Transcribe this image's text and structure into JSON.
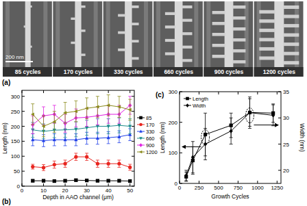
{
  "panel_a": {
    "label": "(a)",
    "scale_bar": "200 nm",
    "images": [
      "85 cycles",
      "170 cycles",
      "330 cycles",
      "660 cycles",
      "900 cycles",
      "1200 cycles"
    ]
  },
  "chart_data": [
    {
      "type": "line",
      "annotations": [
        "(b)"
      ],
      "x_label": "Depth in AAO channel (μm)",
      "y_label": "Length (nm)",
      "x": [
        5,
        10,
        15,
        20,
        25,
        30,
        35,
        40,
        45,
        50
      ],
      "xlim": [
        0,
        52
      ],
      "xticks": [
        0,
        10,
        20,
        30,
        40,
        50
      ],
      "ylim": [
        0,
        320
      ],
      "yticks": [
        0,
        50,
        100,
        150,
        200,
        250,
        300
      ],
      "grid": false,
      "legend": "right",
      "series": [
        {
          "name": "85",
          "color": "#000000",
          "marker": "square",
          "line_style": "solid",
          "values": [
            18,
            18,
            17,
            18,
            20,
            19,
            18,
            18,
            18,
            17
          ],
          "errors": [
            4,
            4,
            4,
            4,
            4,
            4,
            4,
            4,
            4,
            4
          ]
        },
        {
          "name": "170",
          "color": "#e8251f",
          "marker": "circle",
          "line_style": "solid",
          "values": [
            65,
            62,
            72,
            75,
            98,
            98,
            75,
            75,
            75,
            63
          ],
          "errors": [
            8,
            10,
            12,
            12,
            12,
            12,
            12,
            12,
            12,
            10
          ]
        },
        {
          "name": "330",
          "color": "#1f3fe8",
          "marker": "triangle-up",
          "line_style": "solid",
          "values": [
            155,
            152,
            155,
            155,
            155,
            160,
            160,
            162,
            165,
            172
          ],
          "errors": [
            20,
            20,
            20,
            20,
            20,
            20,
            20,
            20,
            20,
            20
          ]
        },
        {
          "name": "660",
          "color": "#1a8a8a",
          "marker": "triangle-down",
          "line_style": "solid",
          "values": [
            188,
            183,
            187,
            188,
            190,
            195,
            200,
            200,
            203,
            200
          ],
          "errors": [
            25,
            25,
            25,
            25,
            25,
            25,
            25,
            25,
            25,
            25
          ]
        },
        {
          "name": "900",
          "color": "#e020e0",
          "marker": "diamond",
          "line_style": "solid",
          "values": [
            205,
            235,
            240,
            210,
            228,
            230,
            235,
            240,
            240,
            270
          ],
          "errors": [
            30,
            30,
            30,
            30,
            30,
            30,
            30,
            30,
            30,
            30
          ]
        },
        {
          "name": "1200",
          "color": "#8a8a1a",
          "marker": "triangle-left",
          "line_style": "solid",
          "values": [
            240,
            200,
            215,
            245,
            250,
            260,
            265,
            270,
            265,
            255
          ],
          "errors": [
            35,
            35,
            35,
            35,
            35,
            35,
            35,
            35,
            35,
            35
          ]
        }
      ]
    },
    {
      "type": "line",
      "annotations": [
        "(c)"
      ],
      "x_label": "Growth Cycles",
      "y_label": "Length (nm)",
      "y2_label": "Width (nm)",
      "x": [
        85,
        170,
        330,
        660,
        900,
        1200
      ],
      "xlim": [
        0,
        1300
      ],
      "xticks": [
        0,
        250,
        500,
        750,
        1000,
        1250
      ],
      "ylim": [
        0,
        300
      ],
      "yticks": [
        0,
        100,
        200,
        300
      ],
      "y2lim": [
        17.5,
        35
      ],
      "y2ticks": [
        20,
        25,
        30,
        35
      ],
      "grid": false,
      "legend": "upper left",
      "series": [
        {
          "name": "Length",
          "color": "#000000",
          "marker": "square",
          "line_style": "solid",
          "values": [
            22,
            75,
            160,
            190,
            232,
            230
          ],
          "errors": [
            15,
            45,
            70,
            40,
            45,
            30
          ]
        },
        {
          "name": "Width",
          "color": "#000000",
          "marker": "diamond",
          "line_style": "solid",
          "axis": "y2",
          "values": [
            19,
            22.5,
            25,
            27.5,
            31,
            30.5
          ],
          "errors": [
            1,
            3,
            3,
            2.5,
            3,
            2
          ]
        }
      ]
    }
  ]
}
